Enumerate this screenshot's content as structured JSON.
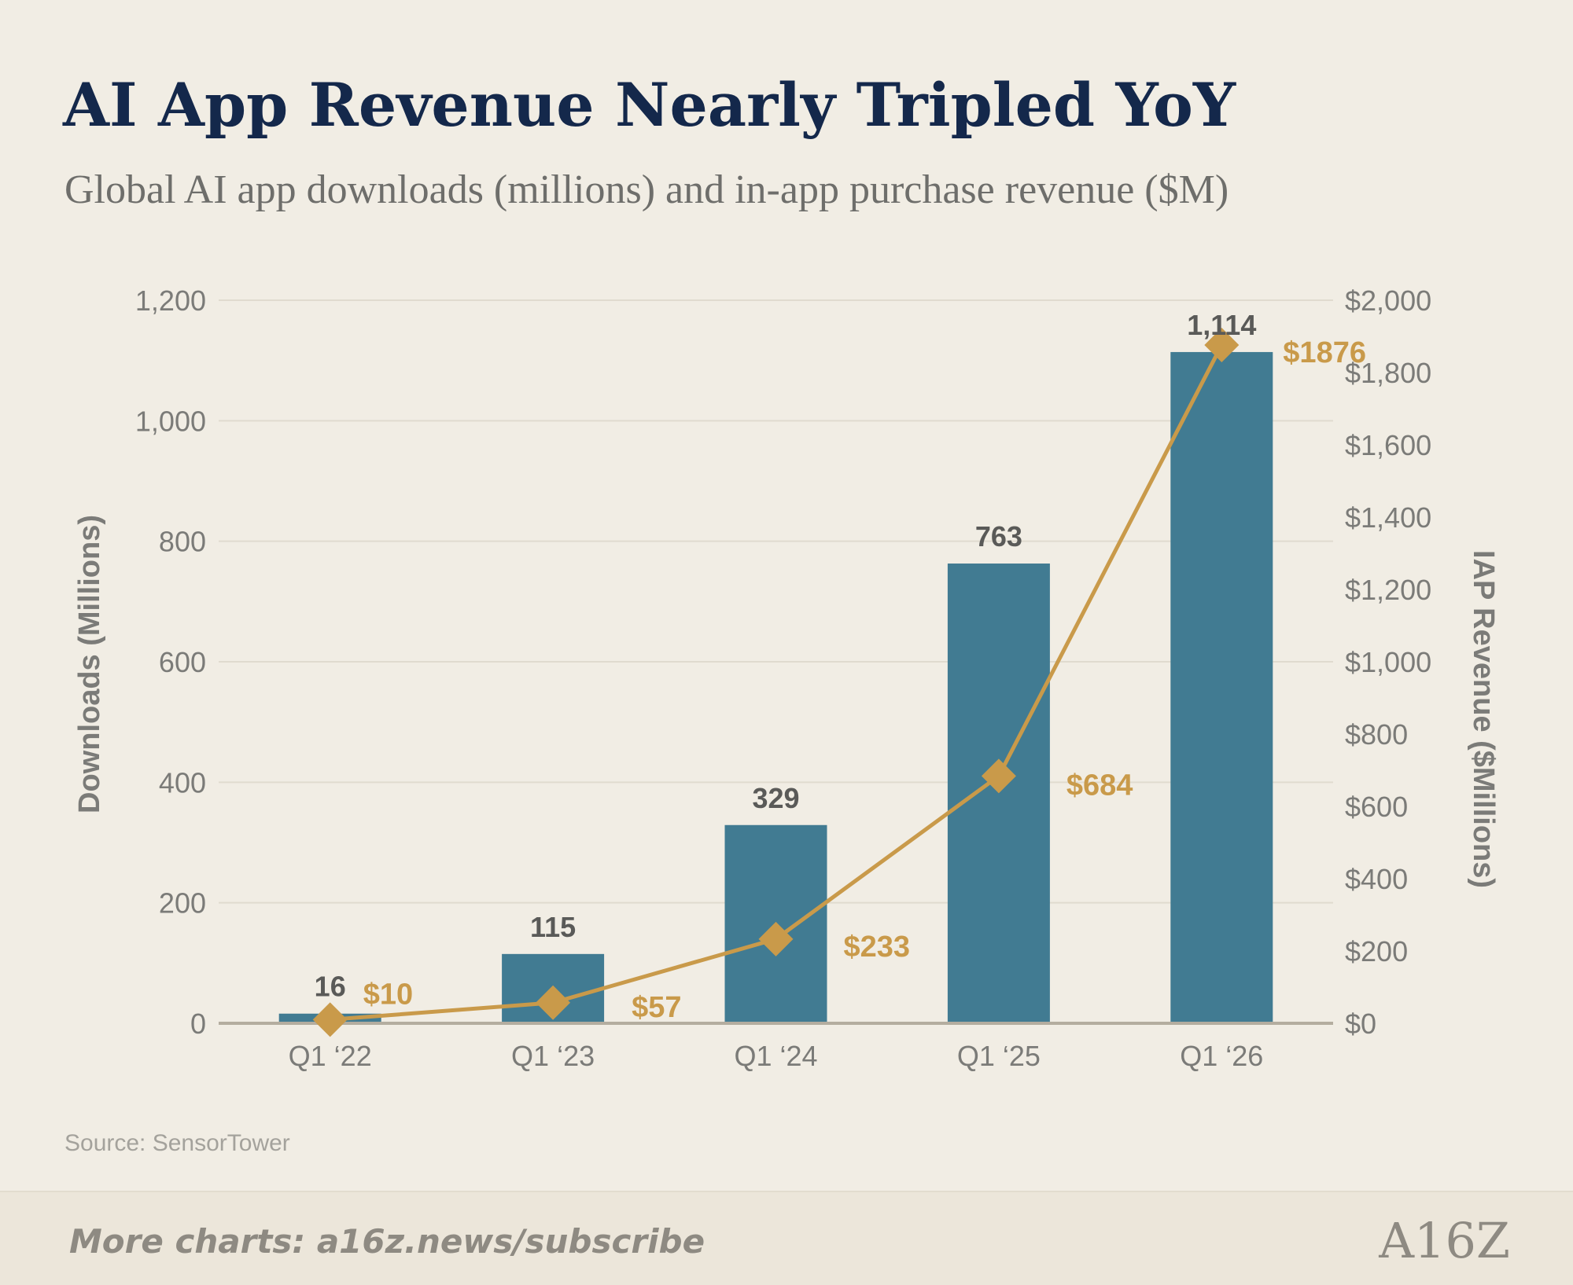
{
  "colors": {
    "background": "#f1ede4",
    "title": "#14284b",
    "bar": "#417b92",
    "line": "#c99a4a",
    "axis_text": "#7b7b78",
    "bar_label": "#5a5a58",
    "grid": "#e0dbcf",
    "baseline": "#b4ad9f"
  },
  "chart_data": {
    "type": "bar",
    "title": "AI App Revenue Nearly Tripled YoY",
    "subtitle": "Global AI app downloads (millions) and in-app purchase revenue ($M)",
    "categories": [
      "Q1 ‘22",
      "Q1 ‘23",
      "Q1 ‘24",
      "Q1 ‘25",
      "Q1 ‘26"
    ],
    "series": [
      {
        "type": "bar",
        "axis": "left",
        "values": [
          16,
          115,
          329,
          763,
          1114
        ],
        "labels": [
          "16",
          "115",
          "329",
          "763",
          "1,114"
        ]
      },
      {
        "type": "line",
        "axis": "right",
        "values": [
          10,
          57,
          233,
          684,
          1876
        ],
        "labels": [
          "$10",
          "$57",
          "$233",
          "$684",
          "$1876"
        ]
      }
    ],
    "ylabel": "Downloads (Millions)",
    "y2label": "IAP Revenue ($Millions)",
    "ylim": [
      0,
      1200
    ],
    "y2lim": [
      0,
      2000
    ],
    "yticks": [
      "0",
      "200",
      "400",
      "600",
      "800",
      "1,000",
      "1,200"
    ],
    "y2ticks": [
      "$0",
      "$200",
      "$400",
      "$600",
      "$800",
      "$1,000",
      "$1,200",
      "$1,400",
      "$1,600",
      "$1,800",
      "$2,000"
    ],
    "grid": true,
    "source": "Source: SensorTower"
  },
  "footer": {
    "cta": "More charts: a16z.news/subscribe",
    "logo_text": "A16Z"
  }
}
